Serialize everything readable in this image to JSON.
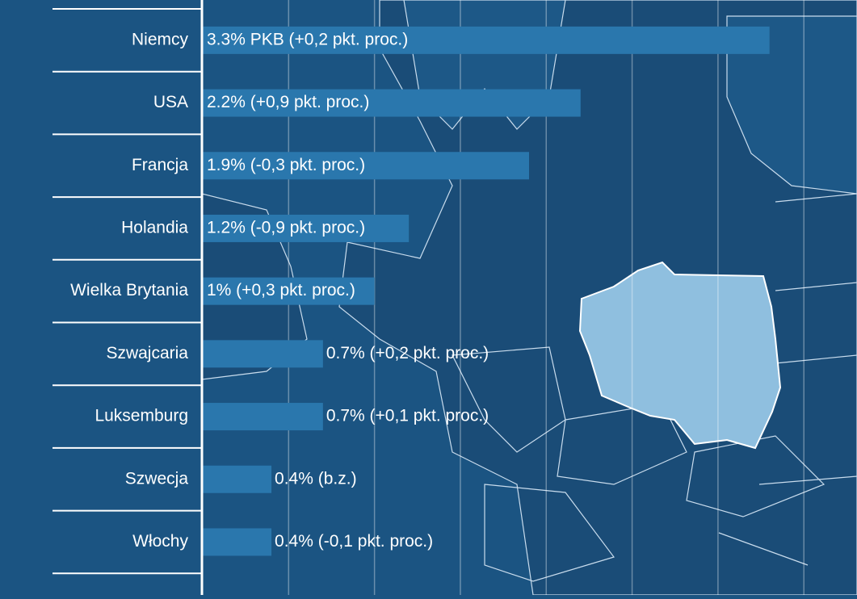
{
  "chart_data": {
    "type": "bar",
    "orientation": "horizontal",
    "categories": [
      "Niemcy",
      "USA",
      "Francja",
      "Holandia",
      "Wielka Brytania",
      "Szwajcaria",
      "Luksemburg",
      "Szwecja",
      "Włochy"
    ],
    "values": [
      3.3,
      2.2,
      1.9,
      1.2,
      1,
      0.7,
      0.7,
      0.4,
      0.4
    ],
    "value_labels": [
      "3.3% PKB (+0,2 pkt. proc.)",
      "2.2% (+0,9 pkt. proc.)",
      "1.9% (-0,3 pkt. proc.)",
      "1.2% (-0,9 pkt. proc.)",
      "1% (+0,3 pkt. proc.)",
      "0.7% (+0,2 pkt. proc.)",
      "0.7% (+0,1 pkt. proc.)",
      "0.4% (b.z.)",
      "0.4% (-0,1 pkt. proc.)"
    ],
    "color": "#2a77ad",
    "xlim": [
      0,
      3.8
    ],
    "xticks": [
      0.5,
      1,
      1.5,
      2,
      2.5,
      3,
      3.5
    ],
    "grid": true
  }
}
